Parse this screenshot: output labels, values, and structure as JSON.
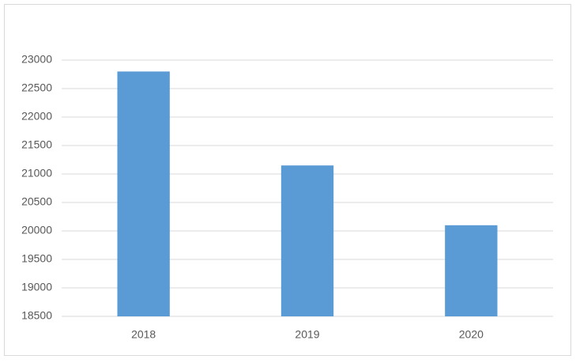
{
  "chart_data": {
    "type": "bar",
    "categories": [
      "2018",
      "2019",
      "2020"
    ],
    "values": [
      22800,
      21150,
      20100
    ],
    "color": "#5b9bd5",
    "ylim": [
      18500,
      23000
    ],
    "yticks": [
      18500,
      19000,
      19500,
      20000,
      20500,
      21000,
      21500,
      22000,
      22500,
      23000
    ],
    "grid": true
  }
}
